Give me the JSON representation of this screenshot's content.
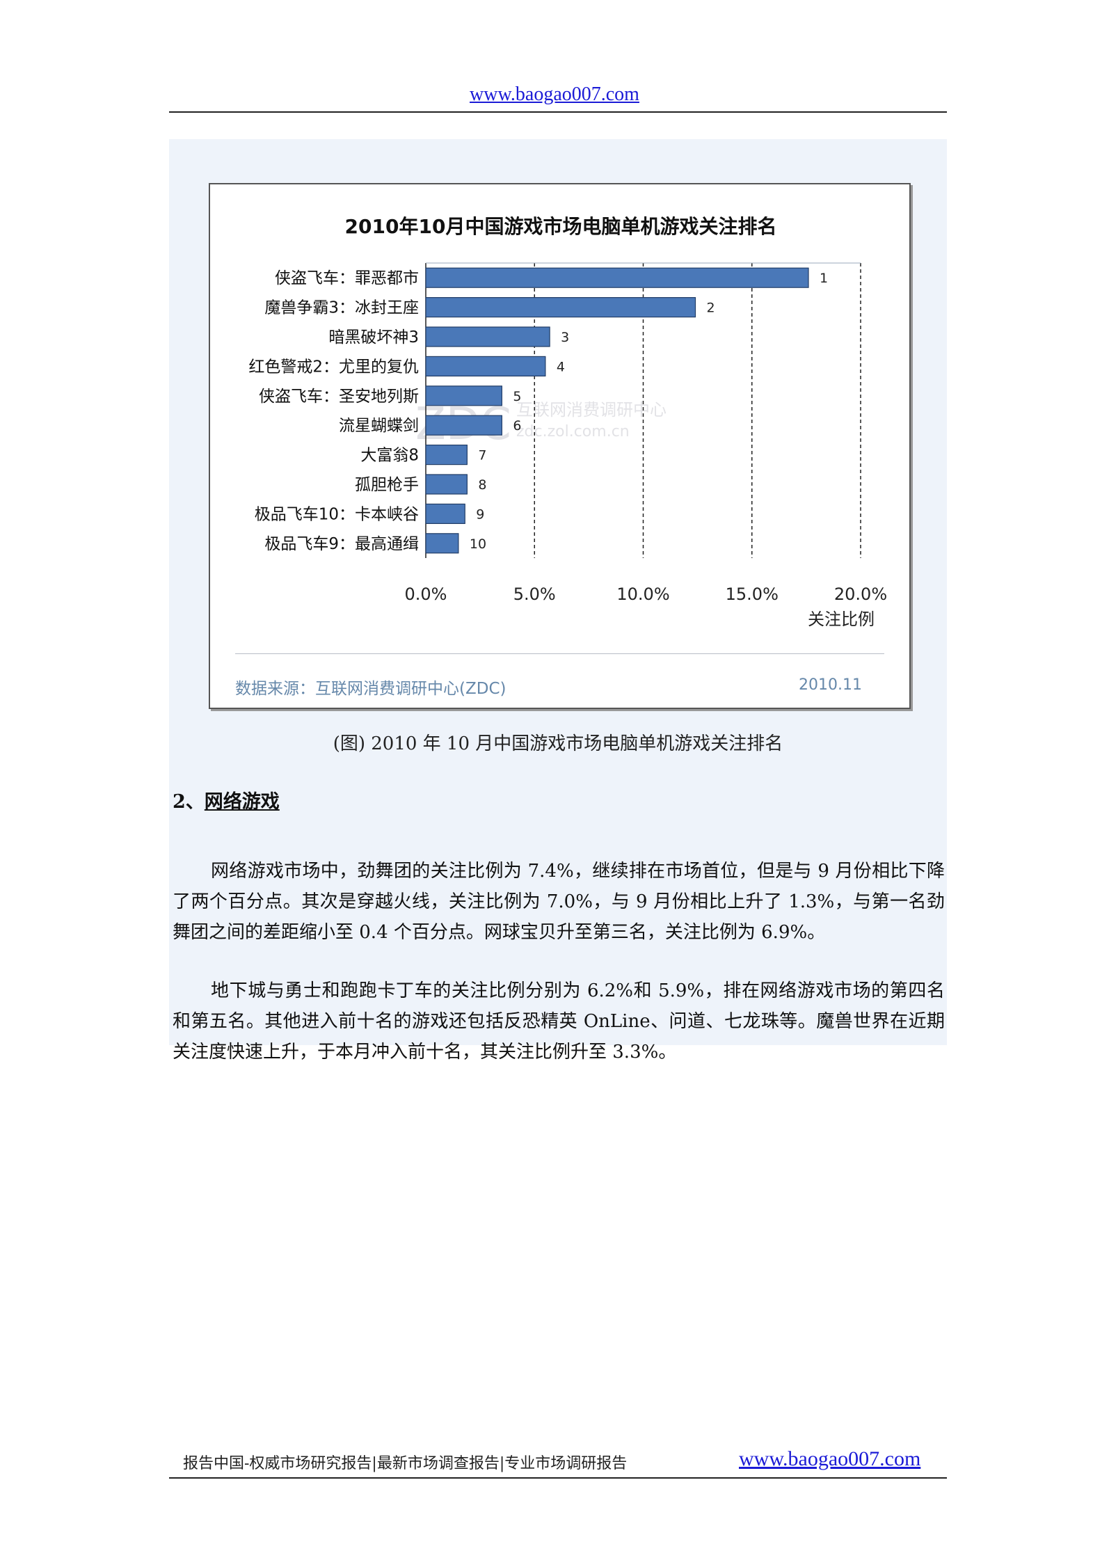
{
  "header": {
    "link": "www.baogao007.com"
  },
  "chart_data": {
    "type": "bar",
    "orientation": "horizontal",
    "title": "2010年10月中国游戏市场电脑单机游戏关注排名",
    "categories": [
      "侠盗飞车：罪恶都市",
      "魔兽争霸3：冰封王座",
      "暗黑破坏神3",
      "红色警戒2：尤里的复仇",
      "侠盗飞车：圣安地列斯",
      "流星蝴蝶剑",
      "大富翁8",
      "孤胆枪手",
      "极品飞车10：卡本峡谷",
      "极品飞车9：最高通缉"
    ],
    "values": [
      17.6,
      12.4,
      5.7,
      5.5,
      3.5,
      3.5,
      1.9,
      1.9,
      1.8,
      1.5
    ],
    "data_labels": [
      "1",
      "2",
      "3",
      "4",
      "5",
      "6",
      "7",
      "8",
      "9",
      "10"
    ],
    "xlim": [
      0,
      20
    ],
    "xticks": [
      "0.0%",
      "5.0%",
      "10.0%",
      "15.0%",
      "20.0%"
    ],
    "xlabel": "关注比例",
    "grid": "vertical dashed",
    "legend": "none",
    "bar_color": "#4a78b8",
    "watermark": "ZDC 互联网消费调研中心 zdc.zol.com.cn"
  },
  "chart_footer": {
    "source": "数据来源：互联网消费调研中心(ZDC)",
    "date": "2010.11"
  },
  "figure_caption": "(图) 2010 年 10 月中国游戏市场电脑单机游戏关注排名",
  "section": {
    "number": "2、",
    "title": "网络游戏"
  },
  "paragraphs": [
    "网络游戏市场中，劲舞团的关注比例为 7.4%，继续排在市场首位，但是与 9 月份相比下降了两个百分点。其次是穿越火线，关注比例为 7.0%，与 9 月份相比上升了 1.3%，与第一名劲舞团之间的差距缩小至 0.4 个百分点。网球宝贝升至第三名，关注比例为 6.9%。",
    "地下城与勇士和跑跑卡丁车的关注比例分别为 6.2%和 5.9%，排在网络游戏市场的第四名和第五名。其他进入前十名的游戏还包括反恐精英 OnLine、问道、七龙珠等。魔兽世界在近期关注度快速上升，于本月冲入前十名，其关注比例升至 3.3%。"
  ],
  "footer": {
    "text": "报告中国-权威市场研究报告|最新市场调查报告|专业市场调研报告",
    "link": "www.baogao007.com"
  }
}
